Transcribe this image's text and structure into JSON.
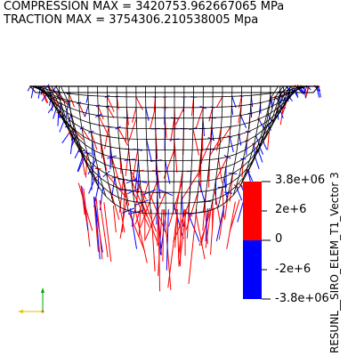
{
  "header": {
    "compression_line": "COMPRESSION MAX = 3420753.962667065 MPa",
    "traction_line": "TRACTION MAX = 3754306.210538005 Mpa"
  },
  "legend": {
    "title": "RESUNL__SIRO_ELEM_T1_Vector 3",
    "ticks": [
      "3.8e+06",
      "2e+6",
      "0",
      "-2e+6",
      "-3.8e+06"
    ],
    "positive_color": "#ff0000",
    "negative_color": "#0000ff"
  },
  "colors": {
    "traction": "#ff0000",
    "compression": "#0000ff",
    "mesh": "#000000",
    "background": "#ffffff",
    "axis_x": "#e0c000",
    "axis_y": "#00aa00"
  },
  "icons": {
    "orientation_axes": "axes-triad-icon"
  }
}
